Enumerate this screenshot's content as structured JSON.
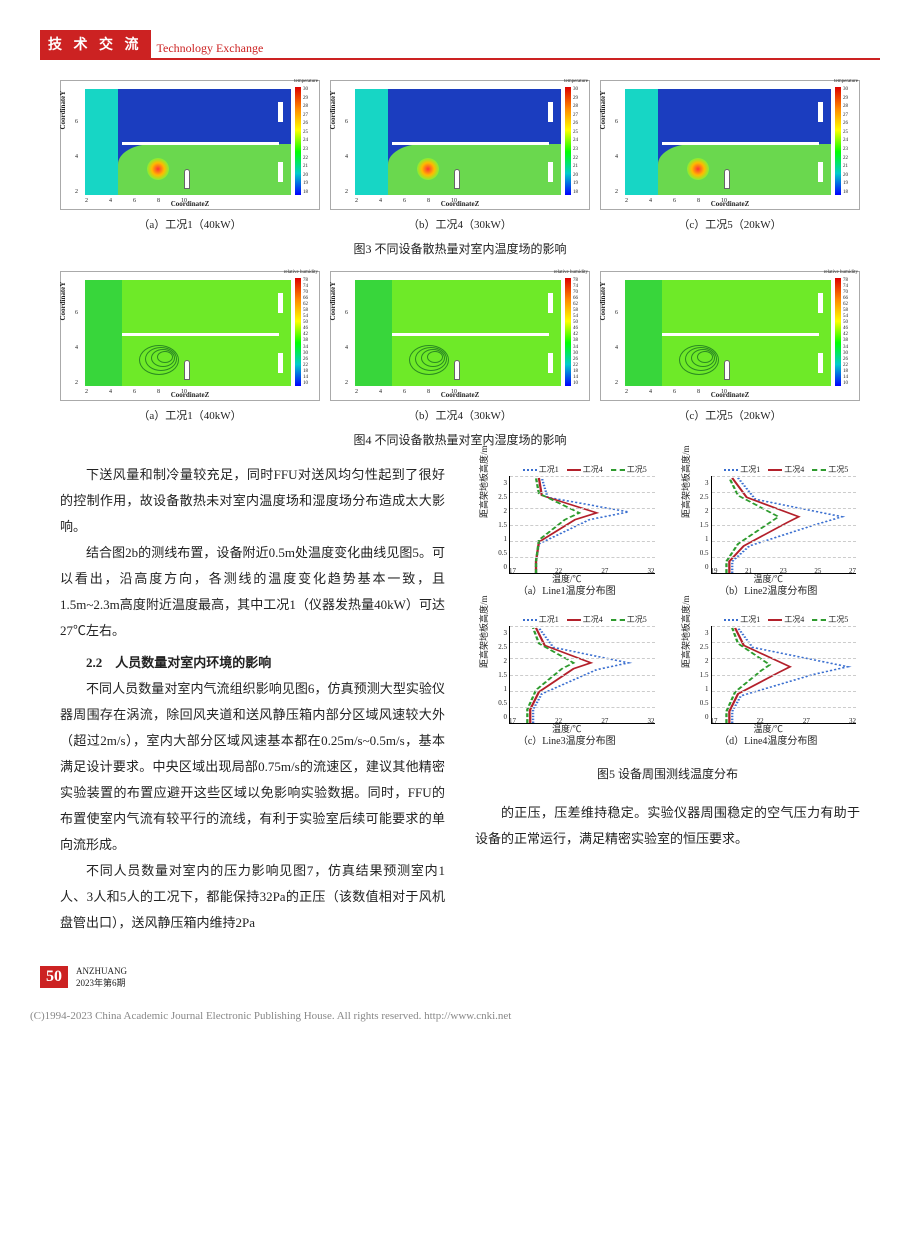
{
  "header": {
    "badge": "技 术 交 流",
    "sub": "Technology Exchange"
  },
  "fig3": {
    "axis_y": "CoordinateY",
    "axis_x": "CoordinateZ",
    "cbar_title": "temperature",
    "cbar_ticks": [
      "30",
      "29.5",
      "29",
      "28.5",
      "28",
      "27.5",
      "27",
      "26.5",
      "26",
      "25.5",
      "25",
      "24.5",
      "24",
      "23.5",
      "23",
      "22.5",
      "22",
      "21.5",
      "21",
      "20.5",
      "20",
      "19.5",
      "19",
      "18.5",
      "18"
    ],
    "bg_top": "#1b3dbf",
    "bg_left": "#17d6c5",
    "bg_bot": "#6ad84e",
    "subs": [
      {
        "cap": "（a）工况1（40kW）"
      },
      {
        "cap": "（b）工况4（30kW）"
      },
      {
        "cap": "（c）工况5（20kW）"
      }
    ],
    "caption": "图3  不同设备散热量对室内温度场的影响"
  },
  "fig4": {
    "axis_y": "CoordinateY",
    "axis_x": "CoordinateZ",
    "cbar_title": "relative humidity",
    "cbar_ticks": [
      "78",
      "74",
      "70",
      "66",
      "62",
      "58",
      "54",
      "50",
      "46",
      "42",
      "38",
      "34",
      "30",
      "26",
      "22",
      "18",
      "14",
      "10"
    ],
    "bg_left": "#38d63b",
    "bg_right": "#6eea28",
    "subs": [
      {
        "cap": "（a）工况1（40kW）"
      },
      {
        "cap": "（b）工况4（30kW）"
      },
      {
        "cap": "（c）工况5（20kW）"
      }
    ],
    "caption": "图4  不同设备散热量对室内湿度场的影响"
  },
  "text": {
    "p1": "下送风量和制冷量较充足，同时FFU对送风均匀性起到了很好的控制作用，故设备散热未对室内温度场和湿度场分布造成太大影响。",
    "p2": "结合图2b的测线布置，设备附近0.5m处温度变化曲线见图5。可以看出，沿高度方向，各测线的温度变化趋势基本一致，且1.5m~2.3m高度附近温度最高，其中工况1（仪器发热量40kW）可达27℃左右。",
    "sec22": "2.2　人员数量对室内环境的影响",
    "p3": "不同人员数量对室内气流组织影响见图6，仿真预测大型实验仪器周围存在涡流，除回风夹道和送风静压箱内部分区域风速较大外（超过2m/s），室内大部分区域风速基本都在0.25m/s~0.5m/s，基本满足设计要求。中央区域出现局部0.75m/s的流速区，建议其他精密实验装置的布置应避开这些区域以免影响实验数据。同时，FFU的布置使室内气流有较平行的流线，有利于实验室后续可能要求的单向流形成。",
    "p4": "不同人员数量对室内的压力影响见图7，仿真结果预测室内1人、3人和5人的工况下，都能保持32Pa的正压（该数值相对于风机盘管出口），送风静压箱内维持2Pa",
    "p5": "的正压，压差维持稳定。实验仪器周围稳定的空气压力有助于设备的正常运行，满足精密实验室的恒压要求。"
  },
  "fig5": {
    "legend": [
      {
        "label": "工况1",
        "style": "dotted",
        "color": "#3a6fd0"
      },
      {
        "label": "工况4",
        "style": "solid",
        "color": "#b3202b"
      },
      {
        "label": "工况5",
        "style": "dashed",
        "color": "#2e9b2e"
      }
    ],
    "ylabel": "距高架地板高度/m",
    "xlabel": "温度/℃",
    "yticks": [
      "3",
      "2.5",
      "2",
      "1.5",
      "1",
      "0.5",
      "0"
    ],
    "panels": [
      {
        "cap": "（a）Line1温度分布图",
        "xticks": [
          "17",
          "22",
          "27",
          "32"
        ],
        "series": {
          "s1": [
            [
              18,
              0
            ],
            [
              18,
              12
            ],
            [
              20,
              30
            ],
            [
              55,
              55
            ],
            [
              82,
              63
            ],
            [
              26,
              78
            ],
            [
              22,
              98
            ]
          ],
          "s4": [
            [
              18,
              0
            ],
            [
              18,
              12
            ],
            [
              20,
              32
            ],
            [
              45,
              55
            ],
            [
              60,
              62
            ],
            [
              22,
              80
            ],
            [
              20,
              98
            ]
          ],
          "s5": [
            [
              18,
              0
            ],
            [
              18,
              12
            ],
            [
              20,
              34
            ],
            [
              38,
              55
            ],
            [
              48,
              62
            ],
            [
              20,
              82
            ],
            [
              18,
              98
            ]
          ]
        }
      },
      {
        "cap": "（b）Line2温度分布图",
        "xticks": [
          "19",
          "21",
          "23",
          "25",
          "27"
        ],
        "series": {
          "s1": [
            [
              14,
              0
            ],
            [
              14,
              12
            ],
            [
              26,
              28
            ],
            [
              72,
              50
            ],
            [
              90,
              58
            ],
            [
              30,
              76
            ],
            [
              18,
              98
            ]
          ],
          "s4": [
            [
              12,
              0
            ],
            [
              12,
              12
            ],
            [
              22,
              28
            ],
            [
              52,
              52
            ],
            [
              60,
              58
            ],
            [
              24,
              78
            ],
            [
              14,
              98
            ]
          ],
          "s5": [
            [
              10,
              0
            ],
            [
              10,
              12
            ],
            [
              18,
              30
            ],
            [
              40,
              52
            ],
            [
              46,
              58
            ],
            [
              18,
              80
            ],
            [
              12,
              98
            ]
          ]
        }
      },
      {
        "cap": "（c）Line3温度分布图",
        "xticks": [
          "17",
          "22",
          "27",
          "32"
        ],
        "series": {
          "s1": [
            [
              16,
              0
            ],
            [
              16,
              14
            ],
            [
              22,
              30
            ],
            [
              60,
              55
            ],
            [
              82,
              62
            ],
            [
              30,
              78
            ],
            [
              20,
              98
            ]
          ],
          "s4": [
            [
              14,
              0
            ],
            [
              14,
              14
            ],
            [
              20,
              32
            ],
            [
              44,
              56
            ],
            [
              56,
              62
            ],
            [
              24,
              80
            ],
            [
              18,
              98
            ]
          ],
          "s5": [
            [
              12,
              0
            ],
            [
              12,
              14
            ],
            [
              18,
              34
            ],
            [
              36,
              56
            ],
            [
              44,
              62
            ],
            [
              20,
              82
            ],
            [
              16,
              98
            ]
          ]
        }
      },
      {
        "cap": "（d）Line4温度分布图",
        "xticks": [
          "17",
          "22",
          "27",
          "32"
        ],
        "series": {
          "s1": [
            [
              14,
              0
            ],
            [
              14,
              12
            ],
            [
              20,
              28
            ],
            [
              70,
              50
            ],
            [
              94,
              58
            ],
            [
              28,
              78
            ],
            [
              18,
              98
            ]
          ],
          "s4": [
            [
              12,
              0
            ],
            [
              12,
              12
            ],
            [
              18,
              30
            ],
            [
              46,
              52
            ],
            [
              54,
              58
            ],
            [
              22,
              80
            ],
            [
              16,
              98
            ]
          ],
          "s5": [
            [
              10,
              0
            ],
            [
              10,
              12
            ],
            [
              16,
              32
            ],
            [
              34,
              54
            ],
            [
              40,
              60
            ],
            [
              18,
              82
            ],
            [
              14,
              98
            ]
          ]
        }
      }
    ],
    "caption": "图5  设备周围测线温度分布"
  },
  "footer": {
    "page": "50",
    "mag": "ANZHUANG",
    "issue": "2023年第6期",
    "cnki": "(C)1994-2023 China Academic Journal Electronic Publishing House. All rights reserved.    http://www.cnki.net"
  }
}
